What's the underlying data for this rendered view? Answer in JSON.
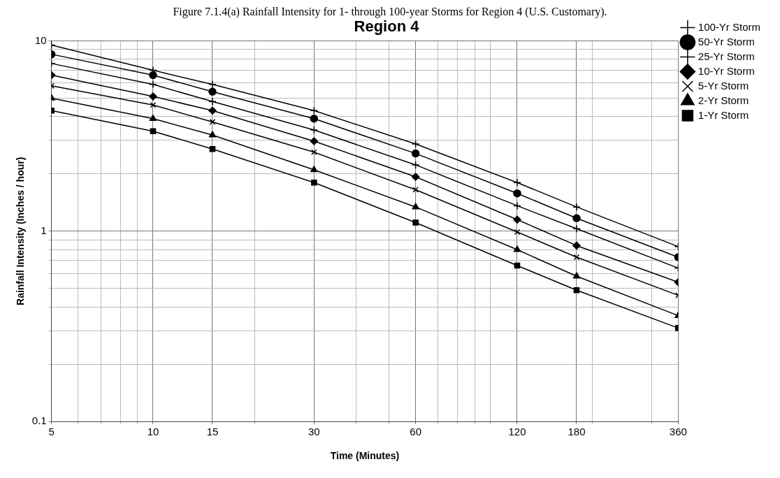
{
  "chart_data": {
    "type": "line",
    "title": "Region 4",
    "xlabel": "Time (Minutes)",
    "ylabel": "Rainfall Intensity (Inches / hour)",
    "annotations": [
      "Figure 7.1.4(a) Rainfall Intensity for 1- through 100-year Storms for Region 4 (U.S. Customary)."
    ],
    "x": [
      5,
      10,
      15,
      30,
      60,
      120,
      180,
      360
    ],
    "series": [
      {
        "name": "100-Yr Storm",
        "color": "#000000",
        "marker": "cross",
        "values": [
          9.5,
          7.0,
          5.9,
          4.3,
          2.87,
          1.8,
          1.34,
          0.83
        ]
      },
      {
        "name": "50-Yr Storm",
        "color": "#000000",
        "marker": "circle",
        "values": [
          8.5,
          6.6,
          5.4,
          3.9,
          2.56,
          1.58,
          1.17,
          0.73
        ]
      },
      {
        "name": "25-Yr Storm",
        "color": "#000000",
        "marker": "cross",
        "values": [
          7.6,
          5.9,
          4.8,
          3.4,
          2.23,
          1.36,
          1.03,
          0.64
        ]
      },
      {
        "name": "10-Yr Storm",
        "color": "#000000",
        "marker": "diamond",
        "values": [
          6.6,
          5.1,
          4.3,
          2.97,
          1.93,
          1.15,
          0.84,
          0.54
        ]
      },
      {
        "name": "5-Yr Storm",
        "color": "#000000",
        "marker": "x",
        "values": [
          5.8,
          4.6,
          3.75,
          2.6,
          1.65,
          0.99,
          0.73,
          0.46
        ]
      },
      {
        "name": "2-Yr Storm",
        "color": "#000000",
        "marker": "triangle",
        "values": [
          5.0,
          3.9,
          3.2,
          2.1,
          1.34,
          0.8,
          0.58,
          0.36
        ]
      },
      {
        "name": "1-Yr Storm",
        "color": "#000000",
        "marker": "square",
        "values": [
          4.3,
          3.35,
          2.7,
          1.8,
          1.11,
          0.66,
          0.49,
          0.31
        ]
      }
    ],
    "log": "xy",
    "grid": true,
    "legend": "top right",
    "line_style": "solid",
    "xlim": [
      5,
      360
    ],
    "xticks": [
      5,
      {
        "value": 6,
        "label": null
      },
      {
        "value": 7,
        "label": null
      },
      {
        "value": 8,
        "label": null
      },
      {
        "value": 9,
        "label": null
      },
      10,
      15,
      {
        "value": 20,
        "label": null
      },
      30,
      {
        "value": 40,
        "label": null
      },
      {
        "value": 50,
        "label": null
      },
      60,
      {
        "value": 70,
        "label": null
      },
      {
        "value": 80,
        "label": null
      },
      {
        "value": 90,
        "label": null
      },
      {
        "value": 100,
        "label": null
      },
      120,
      180,
      {
        "value": 200,
        "label": null
      },
      {
        "value": 300,
        "label": null
      },
      360
    ],
    "ylim": [
      0.1,
      10
    ],
    "yticks": [
      0.1,
      {
        "value": 0.2,
        "label": null
      },
      {
        "value": 0.3,
        "label": null
      },
      {
        "value": 0.4,
        "label": null
      },
      {
        "value": 0.5,
        "label": null
      },
      {
        "value": 0.6,
        "label": null
      },
      {
        "value": 0.7,
        "label": null
      },
      {
        "value": 0.8,
        "label": null
      },
      {
        "value": 0.9,
        "label": null
      },
      1,
      {
        "value": 2,
        "label": null
      },
      {
        "value": 3,
        "label": null
      },
      {
        "value": 4,
        "label": null
      },
      {
        "value": 5,
        "label": null
      },
      {
        "value": 6,
        "label": null
      },
      {
        "value": 7,
        "label": null
      },
      {
        "value": 8,
        "label": null
      },
      {
        "value": 9,
        "label": null
      },
      10
    ]
  }
}
